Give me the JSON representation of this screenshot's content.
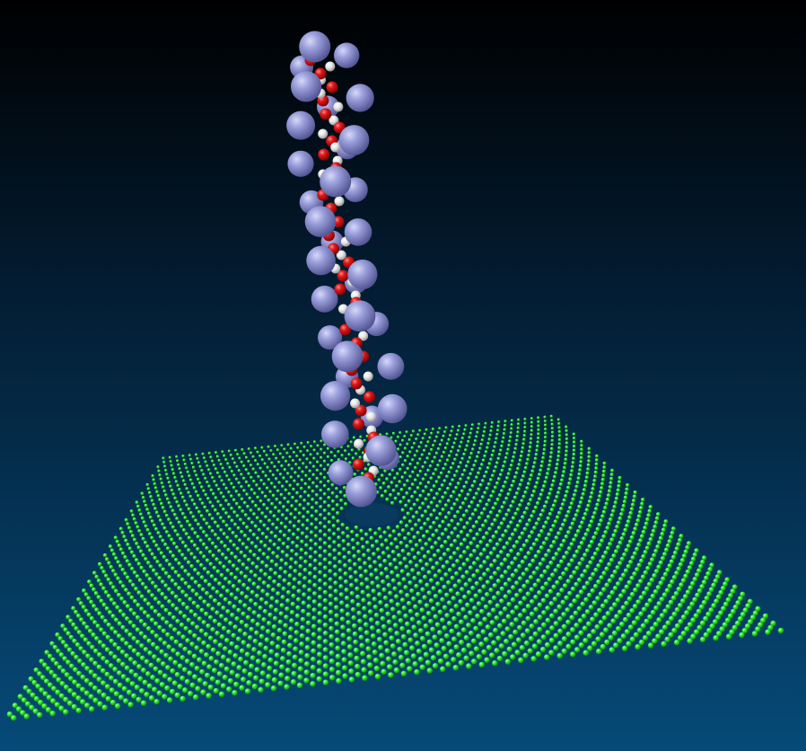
{
  "scene": {
    "subject": "molecular-visualization",
    "background": {
      "top": "#000000",
      "bottom": "#064a78"
    },
    "membrane": {
      "color": "#1fe01f",
      "highlight": "#9dff8d",
      "shade": "#0a7a0a",
      "rows": 60,
      "cols": 60
    },
    "pore": {
      "color": "#0b3b60"
    },
    "chain": {
      "large_bead_color": "#8a8ed0",
      "red_bead_color": "#d81414",
      "white_bead_color": "#eeeeee"
    }
  }
}
